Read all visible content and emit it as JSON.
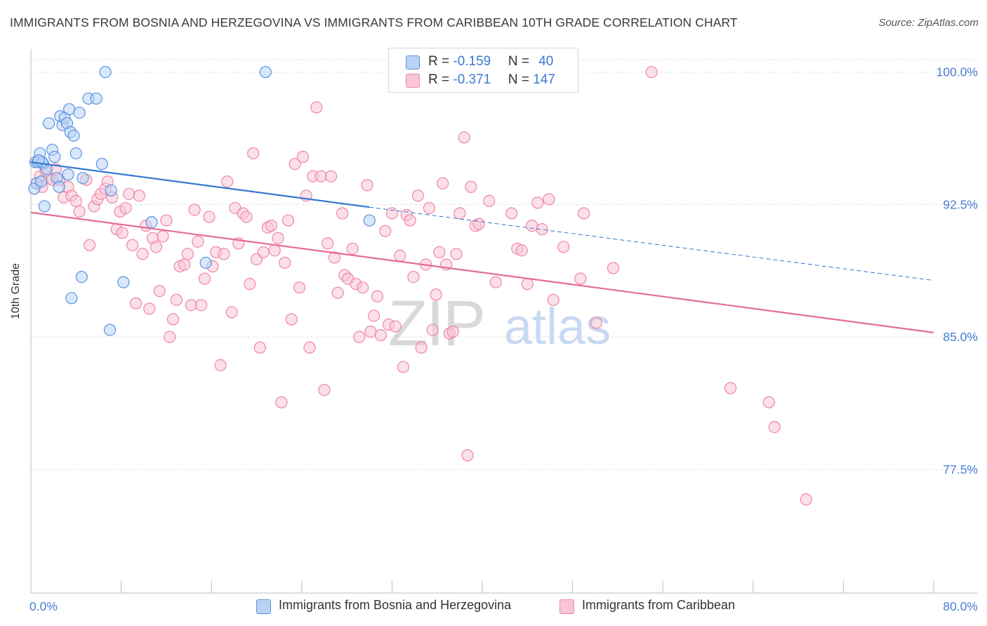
{
  "title": "IMMIGRANTS FROM BOSNIA AND HERZEGOVINA VS IMMIGRANTS FROM CARIBBEAN 10TH GRADE CORRELATION CHART",
  "source": "Source: ZipAtlas.com",
  "watermark": {
    "zip": "ZIP",
    "atlas": "atlas"
  },
  "legend": {
    "rows": [
      {
        "r_label": "R = ",
        "r_value": "-0.159",
        "n_label": "N = ",
        "n_value": "40"
      },
      {
        "r_label": "R = ",
        "r_value": "-0.371",
        "n_label": "N = ",
        "n_value": "147"
      }
    ]
  },
  "colors": {
    "blue_fill": "#b9d3f5",
    "blue_stroke": "#5a93df",
    "blue_line": "#3478d4",
    "pink_fill": "#f8c6d6",
    "pink_stroke": "#ee86a8",
    "pink_line": "#e56b97",
    "tick_label": "#4a7fd4",
    "grid": "#e3e3e3"
  },
  "chart_data": {
    "type": "scatter",
    "title": "IMMIGRANTS FROM BOSNIA AND HERZEGOVINA VS IMMIGRANTS FROM CARIBBEAN 10TH GRADE CORRELATION CHART",
    "xlabel": "",
    "ylabel": "10th Grade",
    "xlim": [
      0,
      80
    ],
    "ylim": [
      70.5,
      101.3
    ],
    "x_tick_labels": [
      {
        "value": 0,
        "label": "0.0%"
      },
      {
        "value": 80,
        "label": "80.0%"
      }
    ],
    "y_tick_labels": [
      {
        "value": 100,
        "label": "100.0%"
      },
      {
        "value": 92.5,
        "label": "92.5%"
      },
      {
        "value": 85,
        "label": "85.0%"
      },
      {
        "value": 77.5,
        "label": "77.5%"
      }
    ],
    "series": [
      {
        "name": "Immigrants from Bosnia and Herzegovina",
        "color": "#5a93df",
        "R": -0.159,
        "N": 40,
        "trend": {
          "x0": 0,
          "y0": 94.9,
          "x1": 30,
          "y1": 92.35,
          "dashed_to_x": 80,
          "dashed_to_y": 88.2
        },
        "points": [
          [
            0.4,
            94.9
          ],
          [
            0.6,
            94.9
          ],
          [
            0.8,
            95.4
          ],
          [
            1.1,
            94.8
          ],
          [
            0.5,
            93.7
          ],
          [
            0.3,
            93.4
          ],
          [
            0.9,
            93.8
          ],
          [
            1.2,
            92.4
          ],
          [
            1.4,
            94.5
          ],
          [
            1.6,
            97.1
          ],
          [
            1.9,
            95.6
          ],
          [
            2.1,
            95.2
          ],
          [
            2.3,
            94.0
          ],
          [
            2.5,
            93.5
          ],
          [
            2.6,
            97.5
          ],
          [
            2.8,
            97.0
          ],
          [
            3.0,
            97.4
          ],
          [
            3.2,
            97.1
          ],
          [
            3.4,
            97.9
          ],
          [
            3.5,
            96.6
          ],
          [
            3.8,
            96.4
          ],
          [
            4.0,
            95.4
          ],
          [
            4.3,
            97.7
          ],
          [
            4.6,
            94.0
          ],
          [
            5.1,
            98.5
          ],
          [
            5.8,
            98.5
          ],
          [
            6.3,
            94.8
          ],
          [
            6.6,
            100.0
          ],
          [
            7.1,
            93.3
          ],
          [
            3.3,
            94.2
          ],
          [
            4.5,
            88.4
          ],
          [
            7.0,
            85.4
          ],
          [
            8.2,
            88.1
          ],
          [
            10.7,
            91.5
          ],
          [
            15.5,
            89.2
          ],
          [
            20.8,
            100.0
          ],
          [
            30.0,
            91.6
          ],
          [
            1.0,
            94.9
          ],
          [
            0.7,
            95.0
          ],
          [
            3.6,
            87.2
          ]
        ]
      },
      {
        "name": "Immigrants from Caribbean",
        "color": "#ee86a8",
        "R": -0.371,
        "N": 147,
        "trend": {
          "x0": 0,
          "y0": 92.05,
          "x1": 80,
          "y1": 85.25
        },
        "points": [
          [
            0.5,
            93.7
          ],
          [
            0.8,
            94.1
          ],
          [
            1.0,
            93.5
          ],
          [
            1.3,
            94.4
          ],
          [
            1.6,
            94.0
          ],
          [
            1.9,
            93.9
          ],
          [
            2.2,
            94.5
          ],
          [
            2.5,
            93.9
          ],
          [
            2.9,
            92.9
          ],
          [
            3.3,
            93.5
          ],
          [
            3.6,
            93.0
          ],
          [
            4.0,
            92.7
          ],
          [
            4.3,
            92.1
          ],
          [
            4.9,
            93.9
          ],
          [
            5.2,
            90.2
          ],
          [
            5.6,
            92.4
          ],
          [
            5.9,
            92.8
          ],
          [
            6.2,
            93.1
          ],
          [
            6.6,
            93.4
          ],
          [
            6.8,
            93.8
          ],
          [
            7.2,
            92.9
          ],
          [
            7.6,
            91.1
          ],
          [
            7.9,
            92.1
          ],
          [
            8.1,
            90.9
          ],
          [
            8.4,
            92.3
          ],
          [
            8.7,
            93.1
          ],
          [
            9.0,
            90.2
          ],
          [
            9.3,
            86.9
          ],
          [
            9.6,
            93.0
          ],
          [
            9.9,
            89.7
          ],
          [
            10.2,
            91.3
          ],
          [
            10.5,
            86.6
          ],
          [
            10.8,
            90.6
          ],
          [
            11.1,
            90.1
          ],
          [
            11.4,
            87.6
          ],
          [
            11.7,
            90.7
          ],
          [
            12.0,
            91.6
          ],
          [
            12.3,
            85.0
          ],
          [
            12.6,
            86.0
          ],
          [
            12.9,
            87.1
          ],
          [
            13.2,
            89.0
          ],
          [
            13.6,
            89.1
          ],
          [
            13.9,
            89.7
          ],
          [
            14.2,
            86.8
          ],
          [
            14.5,
            92.2
          ],
          [
            14.8,
            90.4
          ],
          [
            15.1,
            86.8
          ],
          [
            15.4,
            88.3
          ],
          [
            15.8,
            91.8
          ],
          [
            16.1,
            89.0
          ],
          [
            16.4,
            89.8
          ],
          [
            16.8,
            83.4
          ],
          [
            17.1,
            89.7
          ],
          [
            17.4,
            93.8
          ],
          [
            17.8,
            86.4
          ],
          [
            18.1,
            92.3
          ],
          [
            18.4,
            90.3
          ],
          [
            18.8,
            92.0
          ],
          [
            19.1,
            91.8
          ],
          [
            19.4,
            88.0
          ],
          [
            19.7,
            95.4
          ],
          [
            20.0,
            89.4
          ],
          [
            20.3,
            84.4
          ],
          [
            20.6,
            89.8
          ],
          [
            21.0,
            91.2
          ],
          [
            21.3,
            91.3
          ],
          [
            21.6,
            89.9
          ],
          [
            21.9,
            90.6
          ],
          [
            22.2,
            81.3
          ],
          [
            22.5,
            89.2
          ],
          [
            22.8,
            91.6
          ],
          [
            23.1,
            86.0
          ],
          [
            23.4,
            94.8
          ],
          [
            23.8,
            87.8
          ],
          [
            24.1,
            95.2
          ],
          [
            24.4,
            93.0
          ],
          [
            24.7,
            84.4
          ],
          [
            25.0,
            94.1
          ],
          [
            25.3,
            98.0
          ],
          [
            25.7,
            94.1
          ],
          [
            26.0,
            82.0
          ],
          [
            26.3,
            90.3
          ],
          [
            26.6,
            94.1
          ],
          [
            26.9,
            89.5
          ],
          [
            27.2,
            87.5
          ],
          [
            27.6,
            92.0
          ],
          [
            27.8,
            88.5
          ],
          [
            28.1,
            88.3
          ],
          [
            28.5,
            90.0
          ],
          [
            28.8,
            88.0
          ],
          [
            29.1,
            85.0
          ],
          [
            29.4,
            87.8
          ],
          [
            29.8,
            93.6
          ],
          [
            30.1,
            85.3
          ],
          [
            30.4,
            86.2
          ],
          [
            30.7,
            87.3
          ],
          [
            31.0,
            85.1
          ],
          [
            31.4,
            91.0
          ],
          [
            31.7,
            85.7
          ],
          [
            32.0,
            92.0
          ],
          [
            32.3,
            85.6
          ],
          [
            32.7,
            89.6
          ],
          [
            33.0,
            83.3
          ],
          [
            33.3,
            91.9
          ],
          [
            33.6,
            91.6
          ],
          [
            33.9,
            88.4
          ],
          [
            34.3,
            93.0
          ],
          [
            34.6,
            84.4
          ],
          [
            35.0,
            89.1
          ],
          [
            35.3,
            92.3
          ],
          [
            35.6,
            85.4
          ],
          [
            35.9,
            87.4
          ],
          [
            36.2,
            89.8
          ],
          [
            36.5,
            93.7
          ],
          [
            36.8,
            89.1
          ],
          [
            37.1,
            85.2
          ],
          [
            37.4,
            85.3
          ],
          [
            37.7,
            89.7
          ],
          [
            38.0,
            92.0
          ],
          [
            38.4,
            96.3
          ],
          [
            38.7,
            78.3
          ],
          [
            39.0,
            93.5
          ],
          [
            39.4,
            91.3
          ],
          [
            39.7,
            91.4
          ],
          [
            40.6,
            92.7
          ],
          [
            41.2,
            88.1
          ],
          [
            42.6,
            92.0
          ],
          [
            43.1,
            90.0
          ],
          [
            43.5,
            89.9
          ],
          [
            44.0,
            88.0
          ],
          [
            44.4,
            91.3
          ],
          [
            44.9,
            92.6
          ],
          [
            45.3,
            91.1
          ],
          [
            45.9,
            92.8
          ],
          [
            46.3,
            87.1
          ],
          [
            47.2,
            90.1
          ],
          [
            48.7,
            88.3
          ],
          [
            49.0,
            92.0
          ],
          [
            50.1,
            85.8
          ],
          [
            51.6,
            88.9
          ],
          [
            55.0,
            100.0
          ],
          [
            62.0,
            82.1
          ],
          [
            65.4,
            81.3
          ],
          [
            65.9,
            79.9
          ],
          [
            68.7,
            75.8
          ]
        ]
      }
    ]
  },
  "bottom_legend": [
    {
      "label": "Immigrants from Bosnia and Herzegovina"
    },
    {
      "label": "Immigrants from Caribbean"
    }
  ]
}
